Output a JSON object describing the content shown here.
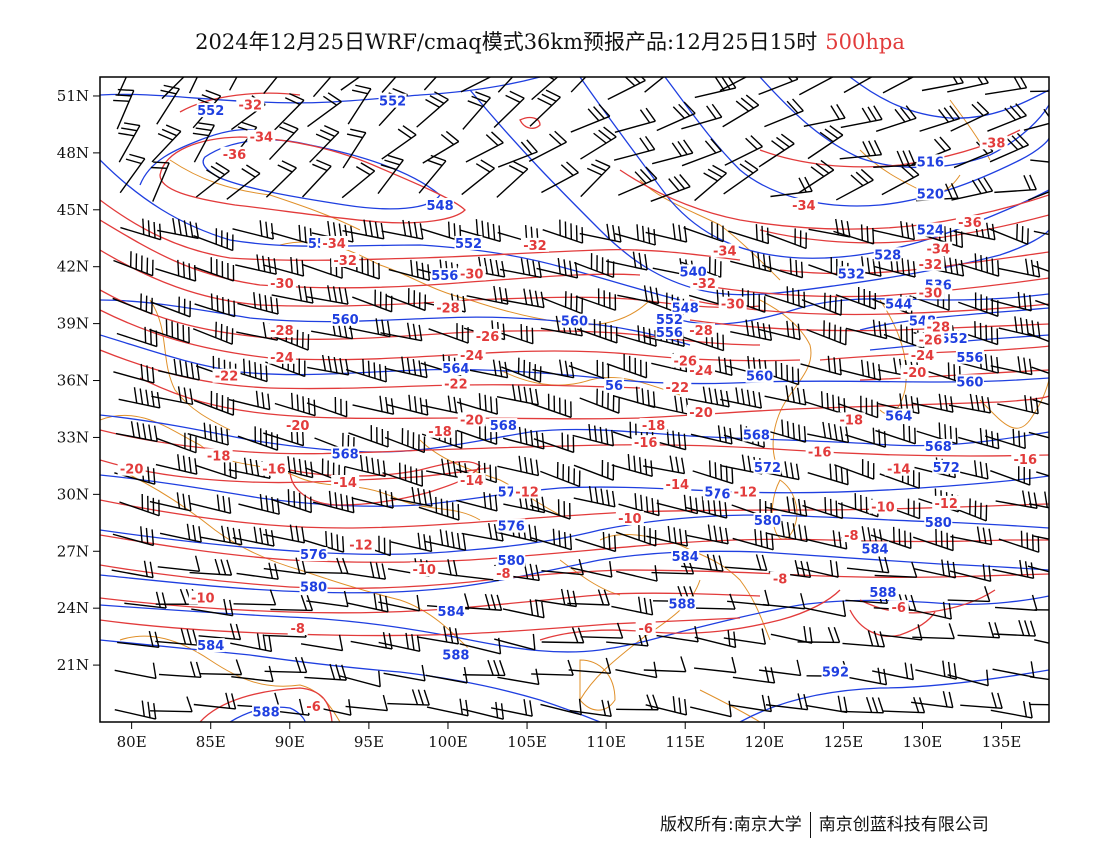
{
  "title": {
    "main": "2024年12月25日WRF/cmaq模式36km预报产品:12月25日15时",
    "level": "500hpa",
    "level_color": "#e23b3b"
  },
  "colors": {
    "height": "#1f3fe0",
    "temperature": "#e23b3b",
    "coast": "#e0902a",
    "wind": "#000000"
  },
  "map": {
    "lon_range": [
      78,
      138
    ],
    "lat_range": [
      18,
      52
    ],
    "lon_ticks": [
      80,
      85,
      90,
      95,
      100,
      105,
      110,
      115,
      120,
      125,
      130,
      135
    ],
    "lat_ticks": [
      51,
      48,
      45,
      42,
      39,
      36,
      33,
      30,
      27,
      24,
      21
    ],
    "lon_labels": [
      "80E",
      "85E",
      "90E",
      "95E",
      "100E",
      "105E",
      "110E",
      "115E",
      "120E",
      "125E",
      "130E",
      "135E"
    ],
    "lat_labels": [
      "51N",
      "48N",
      "45N",
      "42N",
      "39N",
      "36N",
      "33N",
      "30N",
      "27N",
      "24N",
      "21N"
    ],
    "height_labels": [
      {
        "t": "552",
        "lon": 96.5,
        "lat": 50.7
      },
      {
        "t": "552",
        "lon": 85,
        "lat": 50.2
      },
      {
        "t": "548",
        "lon": 99.5,
        "lat": 45.2
      },
      {
        "t": "552",
        "lon": 92,
        "lat": 43.2
      },
      {
        "t": "552",
        "lon": 101.3,
        "lat": 43.2
      },
      {
        "t": "556",
        "lon": 99.8,
        "lat": 41.5
      },
      {
        "t": "560",
        "lon": 93.5,
        "lat": 39.2
      },
      {
        "t": "560",
        "lon": 108,
        "lat": 39.1
      },
      {
        "t": "564",
        "lon": 100.5,
        "lat": 36.6
      },
      {
        "t": "568",
        "lon": 103.5,
        "lat": 33.6
      },
      {
        "t": "568",
        "lon": 93.5,
        "lat": 32.1
      },
      {
        "t": "572",
        "lon": 104,
        "lat": 30.1
      },
      {
        "t": "576",
        "lon": 104,
        "lat": 28.3
      },
      {
        "t": "576",
        "lon": 91.5,
        "lat": 26.8
      },
      {
        "t": "580",
        "lon": 104,
        "lat": 26.5
      },
      {
        "t": "580",
        "lon": 91.5,
        "lat": 25.1
      },
      {
        "t": "584",
        "lon": 100.2,
        "lat": 23.8
      },
      {
        "t": "584",
        "lon": 85,
        "lat": 22
      },
      {
        "t": "588",
        "lon": 100.5,
        "lat": 21.5
      },
      {
        "t": "588",
        "lon": 88.5,
        "lat": 18.5
      },
      {
        "t": "584",
        "lon": 115,
        "lat": 26.7
      },
      {
        "t": "588",
        "lon": 114.8,
        "lat": 24.2
      },
      {
        "t": "592",
        "lon": 124.5,
        "lat": 20.6
      },
      {
        "t": "540",
        "lon": 115.5,
        "lat": 41.7
      },
      {
        "t": "548",
        "lon": 115,
        "lat": 39.8
      },
      {
        "t": "552",
        "lon": 114,
        "lat": 39.2
      },
      {
        "t": "556",
        "lon": 114,
        "lat": 38.5
      },
      {
        "t": "560",
        "lon": 119.7,
        "lat": 36.2
      },
      {
        "t": "564",
        "lon": 128.5,
        "lat": 34.1
      },
      {
        "t": "568",
        "lon": 119.5,
        "lat": 33.1
      },
      {
        "t": "568",
        "lon": 131,
        "lat": 32.5
      },
      {
        "t": "572",
        "lon": 120.2,
        "lat": 31.4
      },
      {
        "t": "572",
        "lon": 131.5,
        "lat": 31.4
      },
      {
        "t": "576",
        "lon": 117,
        "lat": 30
      },
      {
        "t": "580",
        "lon": 120.2,
        "lat": 28.6
      },
      {
        "t": "580",
        "lon": 131,
        "lat": 28.5
      },
      {
        "t": "584",
        "lon": 127,
        "lat": 27.1
      },
      {
        "t": "588",
        "lon": 127.5,
        "lat": 24.8
      },
      {
        "t": "516",
        "lon": 130.5,
        "lat": 47.5
      },
      {
        "t": "520",
        "lon": 130.5,
        "lat": 45.8
      },
      {
        "t": "524",
        "lon": 130.5,
        "lat": 43.9
      },
      {
        "t": "528",
        "lon": 127.8,
        "lat": 42.6
      },
      {
        "t": "532",
        "lon": 125.5,
        "lat": 41.6
      },
      {
        "t": "536",
        "lon": 131,
        "lat": 41
      },
      {
        "t": "544",
        "lon": 128.5,
        "lat": 40
      },
      {
        "t": "548",
        "lon": 130,
        "lat": 39.1
      },
      {
        "t": "552",
        "lon": 132,
        "lat": 38.2
      },
      {
        "t": "556",
        "lon": 133,
        "lat": 37.2
      },
      {
        "t": "560",
        "lon": 133,
        "lat": 35.9
      },
      {
        "t": "56",
        "lon": 110.5,
        "lat": 35.7
      },
      {
        "t": "5",
        "lon": 116.5,
        "lat": 30.1
      }
    ],
    "temp_labels": [
      {
        "t": "-32",
        "lon": 87.5,
        "lat": 50.5
      },
      {
        "t": "-34",
        "lon": 88.2,
        "lat": 48.8
      },
      {
        "t": "-36",
        "lon": 86.5,
        "lat": 47.9
      },
      {
        "t": "-34",
        "lon": 92.8,
        "lat": 43.2
      },
      {
        "t": "-32",
        "lon": 93.5,
        "lat": 42.3
      },
      {
        "t": "-30",
        "lon": 89.5,
        "lat": 41.1
      },
      {
        "t": "-28",
        "lon": 89.5,
        "lat": 38.6
      },
      {
        "t": "-24",
        "lon": 89.5,
        "lat": 37.2
      },
      {
        "t": "-22",
        "lon": 86,
        "lat": 36.2
      },
      {
        "t": "-20",
        "lon": 90.5,
        "lat": 33.6
      },
      {
        "t": "-18",
        "lon": 85.5,
        "lat": 32
      },
      {
        "t": "-16",
        "lon": 89,
        "lat": 31.3
      },
      {
        "t": "-14",
        "lon": 93.5,
        "lat": 30.6
      },
      {
        "t": "-20",
        "lon": 80,
        "lat": 31.3
      },
      {
        "t": "-12",
        "lon": 94.5,
        "lat": 27.3
      },
      {
        "t": "-10",
        "lon": 98.5,
        "lat": 26
      },
      {
        "t": "-8",
        "lon": 103.5,
        "lat": 25.8
      },
      {
        "t": "-10",
        "lon": 84.5,
        "lat": 24.5
      },
      {
        "t": "-8",
        "lon": 90.5,
        "lat": 22.9
      },
      {
        "t": "-6",
        "lon": 91.5,
        "lat": 18.8
      },
      {
        "t": "-6",
        "lon": 112.5,
        "lat": 22.9
      },
      {
        "t": "-8",
        "lon": 121,
        "lat": 25.5
      },
      {
        "t": "-6",
        "lon": 128.5,
        "lat": 24
      },
      {
        "t": "-30",
        "lon": 101.5,
        "lat": 41.6
      },
      {
        "t": "-28",
        "lon": 100,
        "lat": 39.8
      },
      {
        "t": "-26",
        "lon": 102.5,
        "lat": 38.3
      },
      {
        "t": "-24",
        "lon": 101.5,
        "lat": 37.3
      },
      {
        "t": "-22",
        "lon": 100.5,
        "lat": 35.8
      },
      {
        "t": "-20",
        "lon": 101.5,
        "lat": 33.9
      },
      {
        "t": "-18",
        "lon": 99.5,
        "lat": 33.3
      },
      {
        "t": "-14",
        "lon": 101.5,
        "lat": 30.7
      },
      {
        "t": "-12",
        "lon": 105,
        "lat": 30.1
      },
      {
        "t": "-10",
        "lon": 111.5,
        "lat": 28.7
      },
      {
        "t": "-12",
        "lon": 118.8,
        "lat": 30.1
      },
      {
        "t": "-14",
        "lon": 114.5,
        "lat": 30.5
      },
      {
        "t": "-16",
        "lon": 112.5,
        "lat": 32.7
      },
      {
        "t": "-18",
        "lon": 113,
        "lat": 33.6
      },
      {
        "t": "-20",
        "lon": 116,
        "lat": 34.3
      },
      {
        "t": "-22",
        "lon": 114.5,
        "lat": 35.6
      },
      {
        "t": "-24",
        "lon": 116,
        "lat": 36.5
      },
      {
        "t": "-26",
        "lon": 115,
        "lat": 37
      },
      {
        "t": "-28",
        "lon": 116,
        "lat": 38.6
      },
      {
        "t": "-32",
        "lon": 105.5,
        "lat": 43.1
      },
      {
        "t": "-34",
        "lon": 117.5,
        "lat": 42.8
      },
      {
        "t": "-32",
        "lon": 116.2,
        "lat": 41.1
      },
      {
        "t": "-30",
        "lon": 118,
        "lat": 40
      },
      {
        "t": "-34",
        "lon": 122.5,
        "lat": 45.2
      },
      {
        "t": "-38",
        "lon": 134.5,
        "lat": 48.5
      },
      {
        "t": "-36",
        "lon": 133,
        "lat": 44.3
      },
      {
        "t": "-34",
        "lon": 131,
        "lat": 42.9
      },
      {
        "t": "-32",
        "lon": 130.5,
        "lat": 42.1
      },
      {
        "t": "-30",
        "lon": 130.5,
        "lat": 40.6
      },
      {
        "t": "-28",
        "lon": 131,
        "lat": 38.8
      },
      {
        "t": "-26",
        "lon": 130.5,
        "lat": 38.1
      },
      {
        "t": "-24",
        "lon": 130,
        "lat": 37.3
      },
      {
        "t": "-20",
        "lon": 129.5,
        "lat": 36.4
      },
      {
        "t": "-18",
        "lon": 125.5,
        "lat": 33.9
      },
      {
        "t": "-16",
        "lon": 123.5,
        "lat": 32.2
      },
      {
        "t": "-14",
        "lon": 128.5,
        "lat": 31.3
      },
      {
        "t": "-16",
        "lon": 136.5,
        "lat": 31.8
      },
      {
        "t": "-10",
        "lon": 127.5,
        "lat": 29.3
      },
      {
        "t": "-12",
        "lon": 131.5,
        "lat": 29.5
      },
      {
        "t": "-8",
        "lon": 125.5,
        "lat": 27.8
      }
    ]
  },
  "footer": {
    "copyright": "版权所有:南京大学",
    "company": "南京创蓝科技有限公司"
  }
}
